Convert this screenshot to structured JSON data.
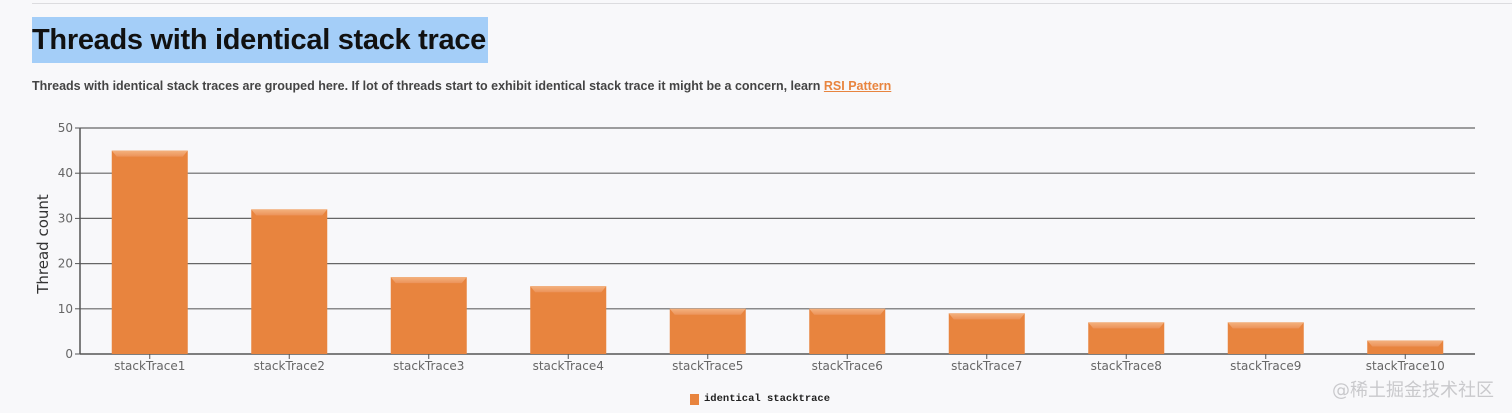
{
  "header": {
    "title": "Threads with identical stack trace",
    "description": "Threads with identical stack traces are grouped here. If lot of threads start to exhibit identical stack trace it might be a concern, learn ",
    "link_label": "RSI Pattern"
  },
  "watermark": "@稀土掘金技术社区",
  "chart_data": {
    "type": "bar",
    "title": "",
    "xlabel": "",
    "ylabel": "Thread count",
    "ylim": [
      0,
      50
    ],
    "yticks": [
      0,
      10,
      20,
      30,
      40,
      50
    ],
    "grid": true,
    "legend_position": "bottom",
    "categories": [
      "stackTrace1",
      "stackTrace2",
      "stackTrace3",
      "stackTrace4",
      "stackTrace5",
      "stackTrace6",
      "stackTrace7",
      "stackTrace8",
      "stackTrace9",
      "stackTrace10"
    ],
    "series": [
      {
        "name": "identical stacktrace",
        "values": [
          45,
          32,
          17,
          15,
          10,
          10,
          9,
          7,
          7,
          3
        ],
        "color": "#e8843e"
      }
    ]
  }
}
